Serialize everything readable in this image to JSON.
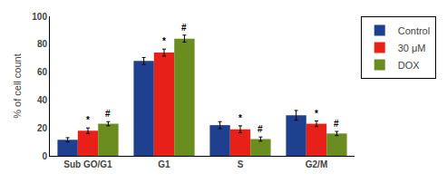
{
  "chart_data": {
    "type": "bar",
    "categories": [
      "Sub GO/G1",
      "G1",
      "S",
      "G2/M"
    ],
    "series": [
      {
        "name": "Control",
        "color": "#1f3f8f",
        "values": [
          11.5,
          68.0,
          22.0,
          29.0
        ],
        "errors": [
          1.5,
          2.5,
          2.5,
          3.5
        ]
      },
      {
        "name": "30 μM",
        "color": "#e8201a",
        "values": [
          18.0,
          74.0,
          19.0,
          23.0
        ],
        "errors": [
          2.0,
          2.5,
          2.5,
          2.0
        ],
        "annotations": [
          "*",
          "*",
          "*",
          "*"
        ]
      },
      {
        "name": "DOX",
        "color": "#6b8c1e",
        "values": [
          23.0,
          84.0,
          12.0,
          16.0
        ],
        "errors": [
          1.5,
          2.5,
          1.5,
          1.5
        ],
        "annotations": [
          "#",
          "#",
          "#",
          "#"
        ]
      }
    ],
    "ylabel": "% of cell count",
    "ylim": [
      0,
      100
    ],
    "yticks": [
      0,
      20,
      40,
      60,
      80,
      100
    ],
    "grid": false,
    "legend": "upper right"
  }
}
